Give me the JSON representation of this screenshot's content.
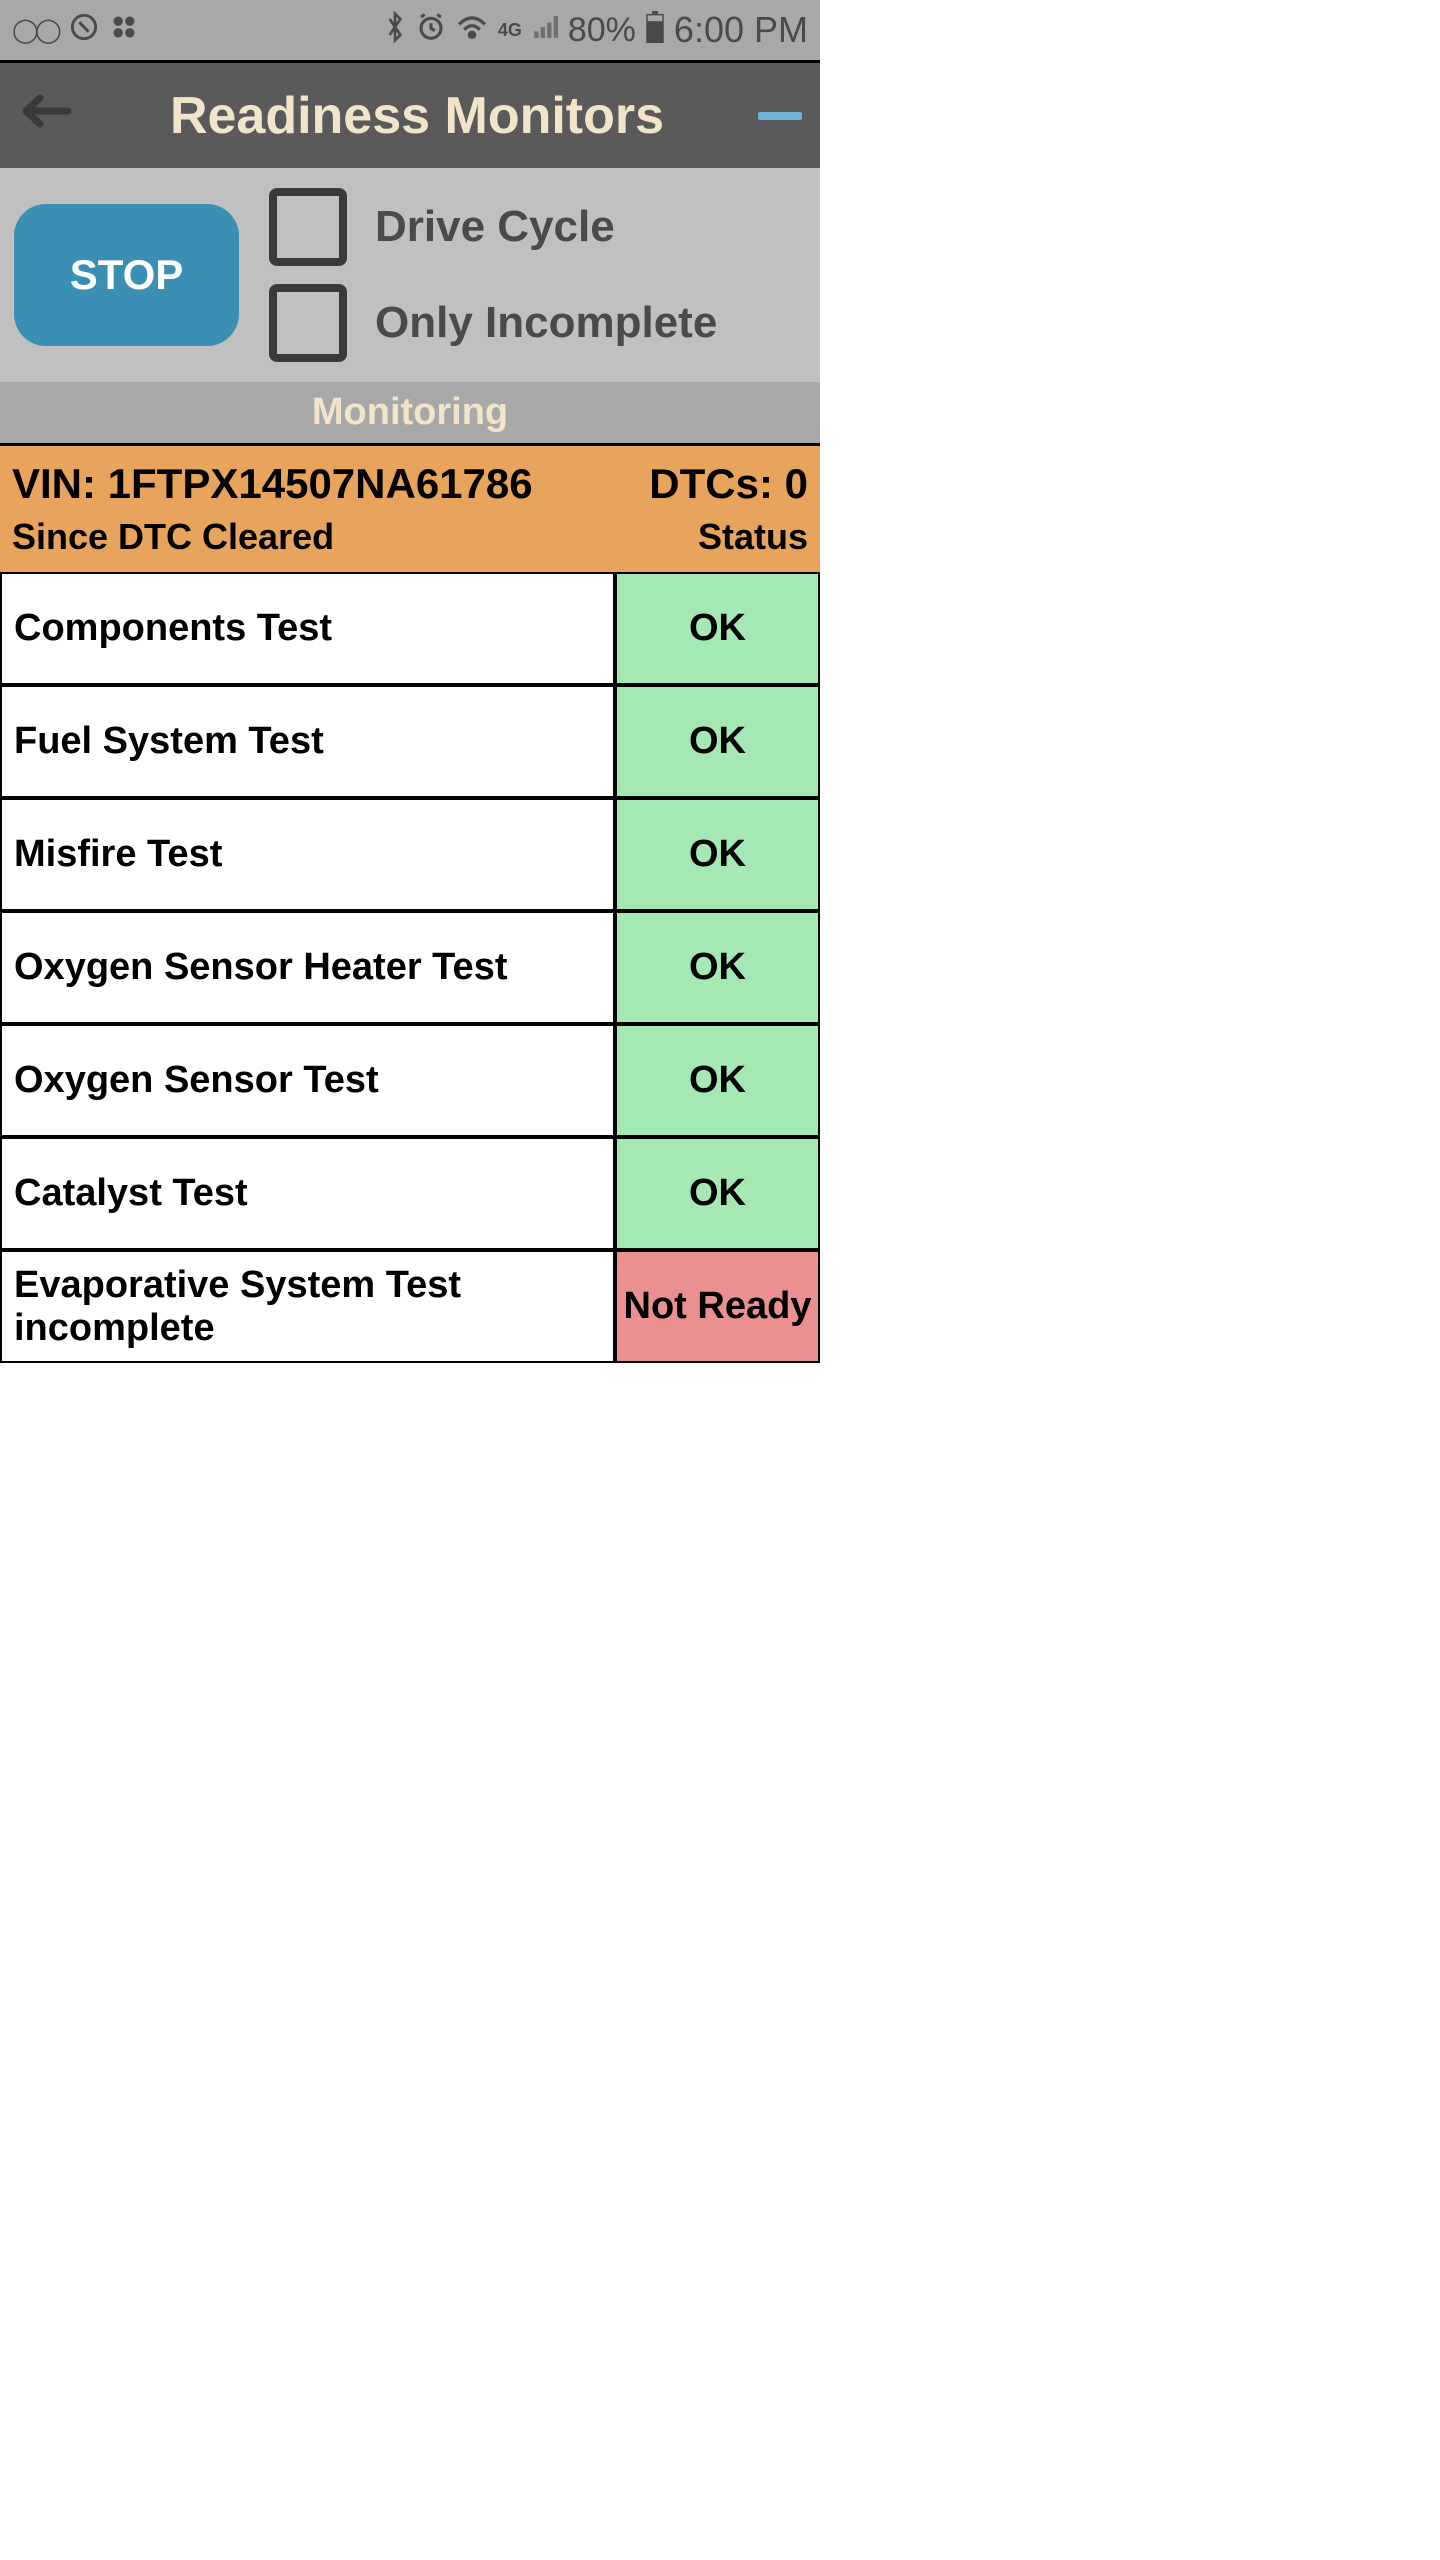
{
  "statusBar": {
    "batteryPct": "80%",
    "time": "6:00 PM"
  },
  "header": {
    "title": "Readiness Monitors"
  },
  "controls": {
    "stopLabel": "STOP",
    "driveCycleLabel": "Drive Cycle",
    "onlyIncompleteLabel": "Only Incomplete"
  },
  "monitoringLabel": "Monitoring",
  "info": {
    "vinPrefix": "VIN: ",
    "vin": "1FTPX14507NA61786",
    "dtcPrefix": "DTCs: ",
    "dtcCount": "0",
    "sinceLabel": "Since DTC Cleared",
    "statusLabel": "Status"
  },
  "tests": [
    {
      "name": "Components Test",
      "status": "OK",
      "statusClass": "status-ok"
    },
    {
      "name": "Fuel System Test",
      "status": "OK",
      "statusClass": "status-ok"
    },
    {
      "name": "Misfire Test",
      "status": "OK",
      "statusClass": "status-ok"
    },
    {
      "name": "Oxygen Sensor Heater Test",
      "status": "OK",
      "statusClass": "status-ok"
    },
    {
      "name": "Oxygen Sensor Test",
      "status": "OK",
      "statusClass": "status-ok"
    },
    {
      "name": "Catalyst Test",
      "status": "OK",
      "statusClass": "status-ok"
    },
    {
      "name": "Evaporative System Test incomplete",
      "status": "Not Ready",
      "statusClass": "status-notready"
    }
  ],
  "colors": {
    "okBg": "#a4e8b3",
    "notReadyBg": "#eb9090",
    "infoBg": "#e8a35c",
    "stopBtn": "#3b8fb5",
    "titleText": "#f2e4c9"
  }
}
